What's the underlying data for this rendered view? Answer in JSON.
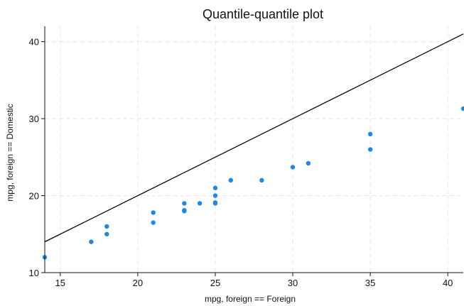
{
  "chart_data": {
    "type": "scatter",
    "title": "Quantile-quantile plot",
    "xlabel": "mpg, foreign == Foreign",
    "ylabel": "mpg, foreign == Domestic",
    "xlim": [
      14,
      41
    ],
    "ylim": [
      10,
      42
    ],
    "xticks": [
      15,
      20,
      25,
      30,
      35,
      40
    ],
    "yticks": [
      10,
      20,
      30,
      40
    ],
    "grid": true,
    "legend": "none",
    "colors": {
      "points": "#1e88e5",
      "reference_line": "#000000",
      "grid": "#e6e6e6"
    },
    "reference_line": {
      "type": "y=x",
      "from": [
        14,
        14
      ],
      "to": [
        41,
        41
      ]
    },
    "series": [
      {
        "x": [
          14,
          17,
          18,
          18,
          21,
          21,
          23,
          23,
          23,
          24,
          25,
          25,
          25,
          25,
          26,
          28,
          30,
          31,
          35,
          35,
          41
        ],
        "y": [
          12,
          14,
          15,
          16,
          16.5,
          17.8,
          18,
          18.1,
          19,
          19,
          19,
          19.1,
          20,
          21,
          22,
          22,
          23.7,
          24.2,
          26,
          28,
          31.3
        ]
      }
    ]
  }
}
